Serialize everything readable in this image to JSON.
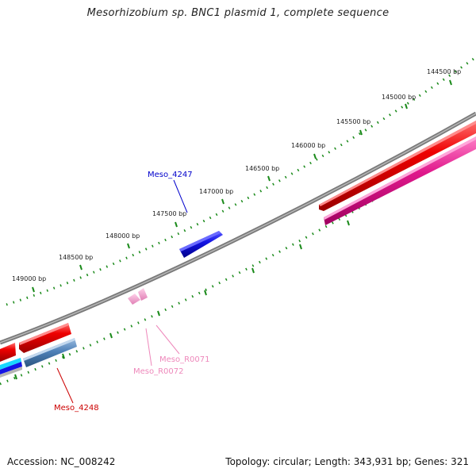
{
  "title": "Mesorhizobium sp. BNC1 plasmid 1, complete sequence",
  "footer": {
    "accession": "Accession: NC_008242",
    "summary": "Topology: circular; Length: 343,931 bp; Genes: 321"
  },
  "ticks": [
    "144500 bp",
    "145000 bp",
    "145500 bp",
    "146000 bp",
    "146500 bp",
    "147000 bp",
    "147500 bp",
    "148000 bp",
    "148500 bp",
    "149000 bp"
  ],
  "gene_labels": {
    "meso_4247": "Meso_4247",
    "meso_4248": "Meso_4248",
    "meso_r0071": "Meso_R0071",
    "meso_r0072": "Meso_R0072"
  },
  "colors": {
    "backbone": "#8a8a8a",
    "cds_forward": "#e8000b",
    "cds_reverse_pink": "#e0198c",
    "cds_blue": "#1414e6",
    "cds_steelblue": "#4f81b8",
    "rna": "#f6a5cf",
    "tick_green": "#1a8a1a",
    "label_blue": "#0000cc",
    "label_red": "#cc0000",
    "label_pink": "#ee88bb"
  }
}
